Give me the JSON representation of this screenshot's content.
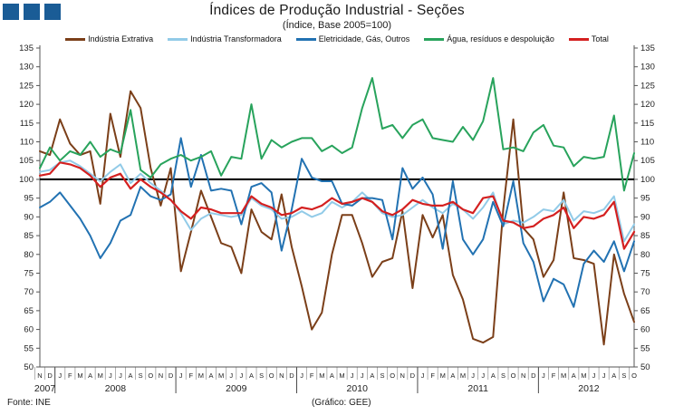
{
  "logo": {
    "color": "#1A5C96",
    "square_count": 3
  },
  "footer": {
    "source": "Fonte: INE",
    "credit": "(Gráfico: GEE)"
  },
  "chart_data": {
    "type": "line",
    "title": "Índices de Produção Industrial - Seções",
    "subtitle": "(Índice, Base 2005=100)",
    "xlabel": "",
    "ylabel": "",
    "ylim": [
      50,
      135
    ],
    "ytick_step": 5,
    "grid": false,
    "legend_position": "top",
    "reference_line": 100,
    "x_axis": {
      "months": [
        "N",
        "D",
        "J",
        "F",
        "M",
        "A",
        "M",
        "J",
        "J",
        "A",
        "S",
        "O",
        "N",
        "D",
        "J",
        "F",
        "M",
        "A",
        "M",
        "J",
        "J",
        "A",
        "S",
        "O",
        "N",
        "D",
        "J",
        "F",
        "M",
        "A",
        "M",
        "J",
        "J",
        "A",
        "S",
        "O",
        "N",
        "D",
        "J",
        "F",
        "M",
        "A",
        "M",
        "J",
        "J",
        "A",
        "S",
        "O",
        "N",
        "D",
        "J",
        "F",
        "M",
        "A",
        "M",
        "J",
        "J",
        "A",
        "S",
        "O"
      ],
      "years": [
        {
          "label": "2007",
          "start": 0,
          "end": 1
        },
        {
          "label": "2008",
          "start": 2,
          "end": 13
        },
        {
          "label": "2009",
          "start": 14,
          "end": 25
        },
        {
          "label": "2010",
          "start": 26,
          "end": 37
        },
        {
          "label": "2011",
          "start": 38,
          "end": 49
        },
        {
          "label": "2012",
          "start": 50,
          "end": 59
        }
      ]
    },
    "series": [
      {
        "name": "Indústria Extrativa",
        "color": "#7B3F19",
        "values": [
          107.5,
          106.5,
          116,
          109.5,
          106.5,
          107.5,
          93.5,
          117.5,
          106,
          123.5,
          119,
          103,
          93,
          103,
          75.5,
          86,
          97,
          90,
          83,
          82,
          75,
          92,
          86,
          84,
          96,
          82,
          71.5,
          60,
          64.5,
          80,
          90.5,
          90.5,
          83,
          74,
          78,
          79,
          91.5,
          71,
          90.5,
          84.5,
          90.5,
          74.5,
          68,
          57.5,
          56.5,
          58,
          92,
          116,
          87,
          84,
          74,
          78.5,
          96.5,
          79,
          78.5,
          77.5,
          56,
          80,
          69.5,
          62
        ]
      },
      {
        "name": "Indústria Transformadora",
        "color": "#92CBE8",
        "values": [
          102,
          102.5,
          104.5,
          105,
          103.5,
          101.5,
          99.5,
          102,
          104,
          99,
          101.5,
          99,
          97,
          94.5,
          91,
          86.5,
          89.5,
          91,
          90.5,
          90,
          90.5,
          95,
          93,
          92,
          89.5,
          90,
          91.5,
          90,
          91,
          94,
          92.5,
          94,
          96.5,
          94,
          91,
          90,
          90.5,
          92.5,
          94.5,
          92.5,
          91,
          93.5,
          92,
          89.5,
          92.5,
          96.5,
          88,
          89,
          88.5,
          90,
          92,
          91.5,
          94.5,
          89,
          91.5,
          91,
          92,
          95.5,
          83.5,
          88
        ]
      },
      {
        "name": "Eletricidade, Gás, Outros",
        "color": "#2272B2",
        "values": [
          92.5,
          94,
          96.5,
          93,
          89.5,
          85,
          79,
          83,
          89,
          90.5,
          98,
          95.5,
          94.5,
          96,
          111,
          98,
          106.5,
          97,
          97.5,
          97,
          88,
          98,
          99,
          96.5,
          81,
          92,
          105.5,
          100.5,
          99.5,
          99.5,
          93.5,
          93,
          95,
          95,
          94.5,
          84,
          103,
          97.5,
          100.5,
          96,
          81.5,
          99.5,
          84,
          80,
          84,
          94,
          87.5,
          99.5,
          83,
          78,
          67.5,
          73.5,
          72,
          66,
          77.5,
          81,
          78,
          83.5,
          75.5,
          83.5
        ]
      },
      {
        "name": "Água, resíduos e despoluição",
        "color": "#28A35C",
        "values": [
          103,
          108.5,
          105,
          107.5,
          106.5,
          110,
          106,
          108,
          107,
          118.5,
          102.5,
          100.5,
          104,
          105.5,
          106.5,
          105,
          106,
          107.5,
          101,
          106,
          105.5,
          120,
          105.5,
          110.5,
          108.5,
          110,
          111,
          111,
          107.5,
          109,
          107,
          108.5,
          119,
          127,
          113.5,
          114.5,
          111,
          114.5,
          116,
          111,
          110.5,
          110,
          114,
          110.5,
          115.5,
          127,
          108,
          108.5,
          107.5,
          112.5,
          114.5,
          109,
          108.5,
          103.5,
          106,
          105.5,
          106,
          117,
          97,
          107
        ]
      },
      {
        "name": "Total",
        "color": "#D42020",
        "values": [
          101,
          101.5,
          104.5,
          104,
          103,
          101,
          98,
          100.5,
          101.5,
          97.5,
          100,
          98,
          96.5,
          94.5,
          91.5,
          89.5,
          92.5,
          92,
          91,
          91,
          91,
          95.5,
          93.5,
          92.5,
          90.5,
          91,
          92.5,
          92,
          93,
          95,
          93.5,
          94,
          95,
          94,
          91.5,
          90.5,
          92,
          94.5,
          93.5,
          93,
          93,
          94,
          92,
          91,
          95,
          95.5,
          89,
          88.5,
          87,
          87.5,
          89.5,
          90.5,
          92.5,
          87,
          90,
          89.5,
          90.5,
          94,
          81.5,
          86
        ]
      }
    ]
  }
}
